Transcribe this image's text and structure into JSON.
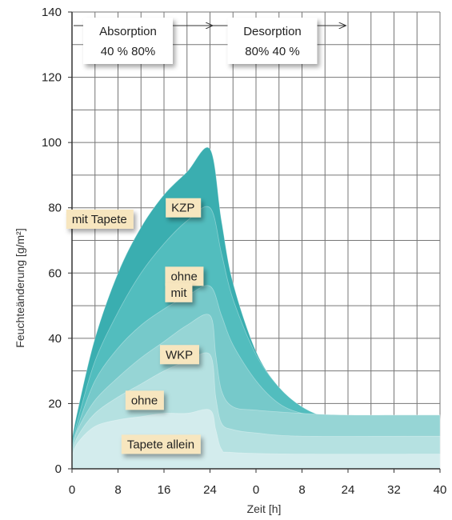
{
  "chart_data": {
    "type": "area",
    "xlabel": "Zeit [h]",
    "ylabel": "Feuchteänderung [g/m²]",
    "x_tick_labels": [
      "0",
      "8",
      "16",
      "24",
      "0",
      "8",
      "24",
      "32",
      "40"
    ],
    "y_ticks": [
      0,
      20,
      40,
      60,
      80,
      100,
      120,
      140
    ],
    "ylim": [
      0,
      140
    ],
    "xlim": [
      0,
      64
    ],
    "grid": true,
    "phases": [
      {
        "label": "Absorption",
        "values": "40 %  80%",
        "x_start": 0,
        "x_end": 24
      },
      {
        "label": "Desorption",
        "values": "80%  40 %",
        "x_start": 24,
        "x_end": 64
      }
    ],
    "series": [
      {
        "name": "KZP mit Tapete",
        "color": "#3aaeb0",
        "points": [
          [
            0,
            9
          ],
          [
            1,
            18
          ],
          [
            4,
            40
          ],
          [
            8,
            60
          ],
          [
            12,
            74
          ],
          [
            16,
            84
          ],
          [
            20,
            91
          ],
          [
            24,
            98
          ],
          [
            26,
            76
          ],
          [
            28,
            57
          ],
          [
            32,
            36
          ],
          [
            36,
            25
          ],
          [
            40,
            19
          ],
          [
            44,
            16
          ],
          [
            48,
            16
          ],
          [
            56,
            16
          ],
          [
            64,
            16
          ]
        ]
      },
      {
        "name": "KZP ohne",
        "color": "#52bdbe",
        "points": [
          [
            0,
            8
          ],
          [
            1,
            15
          ],
          [
            4,
            33
          ],
          [
            8,
            48
          ],
          [
            12,
            60
          ],
          [
            16,
            69
          ],
          [
            20,
            76
          ],
          [
            24,
            80
          ],
          [
            26,
            66
          ],
          [
            28,
            52
          ],
          [
            32,
            35
          ],
          [
            36,
            25
          ],
          [
            40,
            19
          ],
          [
            44,
            16
          ],
          [
            48,
            15.5
          ],
          [
            56,
            15.5
          ],
          [
            64,
            15.5
          ]
        ]
      },
      {
        "name": "KZP mit",
        "color": "#76c9ca",
        "points": [
          [
            0,
            7
          ],
          [
            1,
            13
          ],
          [
            4,
            27
          ],
          [
            8,
            37
          ],
          [
            12,
            44
          ],
          [
            16,
            49
          ],
          [
            20,
            53
          ],
          [
            24,
            56
          ],
          [
            26,
            47
          ],
          [
            28,
            38
          ],
          [
            32,
            27
          ],
          [
            36,
            20
          ],
          [
            40,
            17
          ],
          [
            44,
            16
          ],
          [
            48,
            15
          ],
          [
            56,
            15
          ],
          [
            64,
            15
          ]
        ]
      },
      {
        "name": "WKP mit Tapete",
        "color": "#96d5d5",
        "points": [
          [
            0,
            6
          ],
          [
            1,
            12
          ],
          [
            4,
            21
          ],
          [
            8,
            28
          ],
          [
            12,
            34
          ],
          [
            16,
            39
          ],
          [
            20,
            44
          ],
          [
            24,
            47
          ],
          [
            25,
            35
          ],
          [
            26,
            24
          ],
          [
            28,
            19
          ],
          [
            32,
            18
          ],
          [
            40,
            17
          ],
          [
            48,
            16.5
          ],
          [
            64,
            16.5
          ]
        ]
      },
      {
        "name": "WKP ohne",
        "color": "#b5e1e1",
        "points": [
          [
            0,
            5
          ],
          [
            1,
            10
          ],
          [
            4,
            17
          ],
          [
            8,
            22
          ],
          [
            12,
            26
          ],
          [
            16,
            30
          ],
          [
            20,
            33
          ],
          [
            24,
            35
          ],
          [
            25,
            22
          ],
          [
            26,
            14
          ],
          [
            28,
            12
          ],
          [
            32,
            11
          ],
          [
            40,
            10
          ],
          [
            64,
            10
          ]
        ]
      },
      {
        "name": "Tapete allein",
        "color": "#d3eced",
        "points": [
          [
            0,
            4
          ],
          [
            1,
            8
          ],
          [
            4,
            13
          ],
          [
            8,
            15
          ],
          [
            12,
            16
          ],
          [
            16,
            17
          ],
          [
            20,
            17
          ],
          [
            24,
            18
          ],
          [
            25,
            12
          ],
          [
            26,
            6
          ],
          [
            28,
            5
          ],
          [
            40,
            4.5
          ],
          [
            64,
            4.5
          ]
        ]
      }
    ],
    "annotations": [
      {
        "text": "mit Tapete",
        "x": -1,
        "y": 76.5
      },
      {
        "text": "KZP",
        "x": 16.3,
        "y": 80
      },
      {
        "text": "ohne",
        "x": 16.2,
        "y": 59
      },
      {
        "text": "mit",
        "x": 16.2,
        "y": 54
      },
      {
        "text": "WKP",
        "x": 15.3,
        "y": 35
      },
      {
        "text": "ohne",
        "x": 9.3,
        "y": 21
      },
      {
        "text": "Tapete allein",
        "x": 8.6,
        "y": 7.5
      }
    ]
  }
}
